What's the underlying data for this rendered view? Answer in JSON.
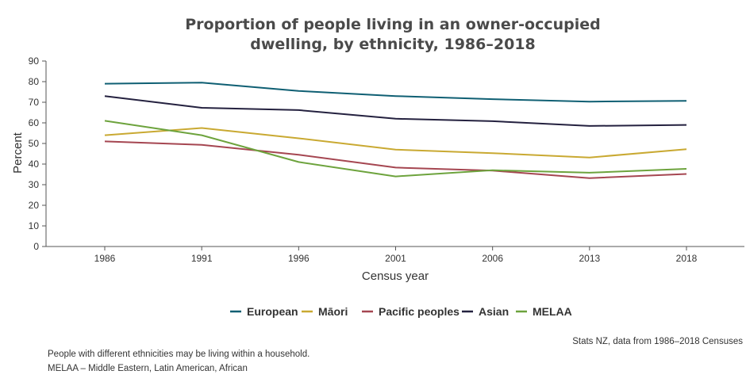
{
  "chart_data": {
    "type": "line",
    "title_line1": "Proportion of people living in an owner-occupied",
    "title_line2": "dwelling, by ethnicity, 1986–2018",
    "xlabel": "Census year",
    "ylabel": "Percent",
    "categories": [
      "1986",
      "1991",
      "1996",
      "2001",
      "2006",
      "2013",
      "2018"
    ],
    "x": [
      1986,
      1991,
      1996,
      2001,
      2006,
      2013,
      2018
    ],
    "ylim": [
      0,
      90
    ],
    "yticks": [
      0,
      10,
      20,
      30,
      40,
      50,
      60,
      70,
      80,
      90
    ],
    "grid": false,
    "legend_position": "bottom",
    "series": [
      {
        "name": "European",
        "color": "#0f5f73",
        "values": [
          79,
          79.5,
          75.5,
          73,
          71.5,
          70.3,
          70.7
        ]
      },
      {
        "name": "Māori",
        "color": "#c9a932",
        "values": [
          54,
          57.5,
          52.5,
          47,
          45.3,
          43.2,
          47.2
        ]
      },
      {
        "name": "Pacific peoples",
        "color": "#a54651",
        "values": [
          51,
          49.3,
          44.5,
          38.3,
          36.8,
          33.2,
          35.2
        ]
      },
      {
        "name": "Asian",
        "color": "#24213f",
        "values": [
          73,
          67.3,
          66.2,
          62,
          60.8,
          58.5,
          59
        ]
      },
      {
        "name": "MELAA",
        "color": "#6da33d",
        "values": [
          61,
          54,
          41,
          34,
          37,
          35.8,
          37.7
        ]
      }
    ]
  },
  "footer": {
    "source": "Stats NZ, data from 1986–2018 Censuses",
    "note1": "People with different ethnicities may be living within a household.",
    "note2": "MELAA – Middle Eastern, Latin American, African"
  }
}
